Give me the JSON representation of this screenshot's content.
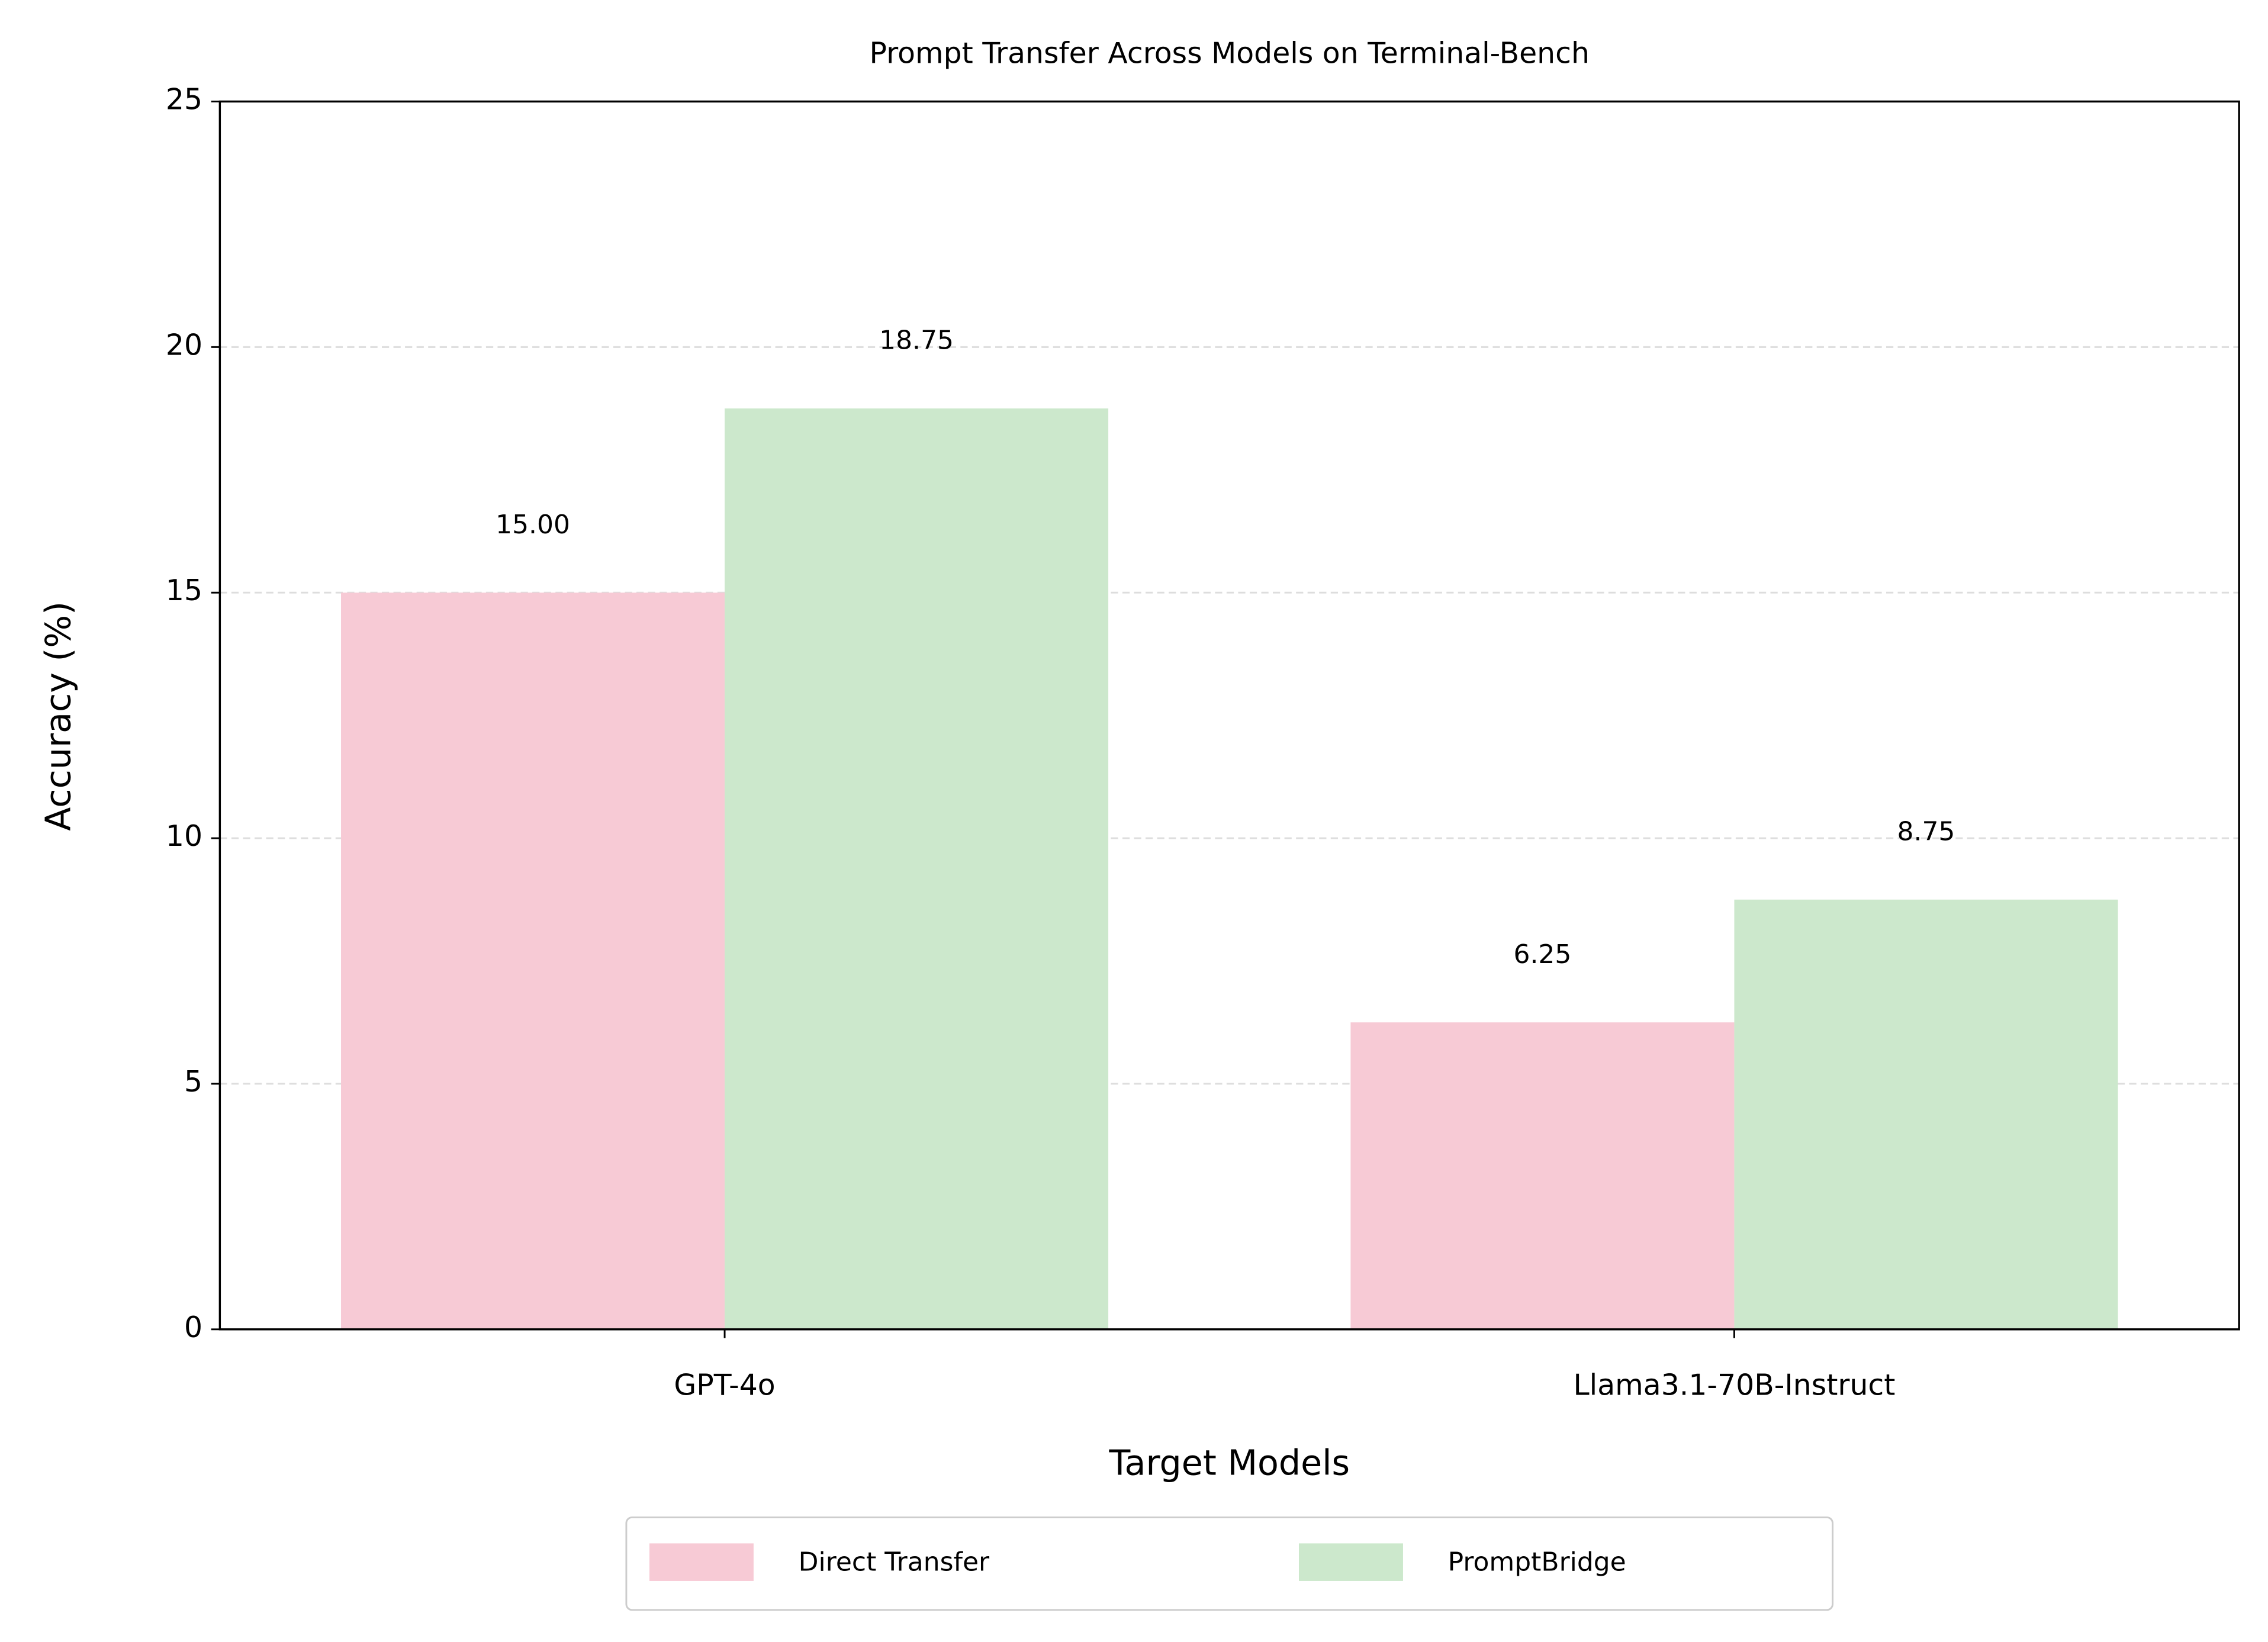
{
  "chart_data": {
    "type": "bar",
    "title": "Prompt Transfer Across Models on Terminal-Bench",
    "xlabel": "Target Models",
    "ylabel": "Accuracy (%)",
    "categories": [
      "GPT-4o",
      "Llama3.1-70B-Instruct"
    ],
    "series": [
      {
        "name": "Direct Transfer",
        "color": "#f7cad5",
        "values": [
          15,
          6.25
        ],
        "value_labels": [
          "15.00",
          "6.25"
        ]
      },
      {
        "name": "PromptBridge",
        "color": "#cce8cc",
        "values": [
          18.75,
          8.75
        ],
        "value_labels": [
          "18.75",
          "8.75"
        ]
      }
    ],
    "ylim": [
      0,
      25
    ],
    "yticks": [
      0,
      5,
      10,
      15,
      20,
      25
    ],
    "grid": true,
    "legend": "below"
  }
}
